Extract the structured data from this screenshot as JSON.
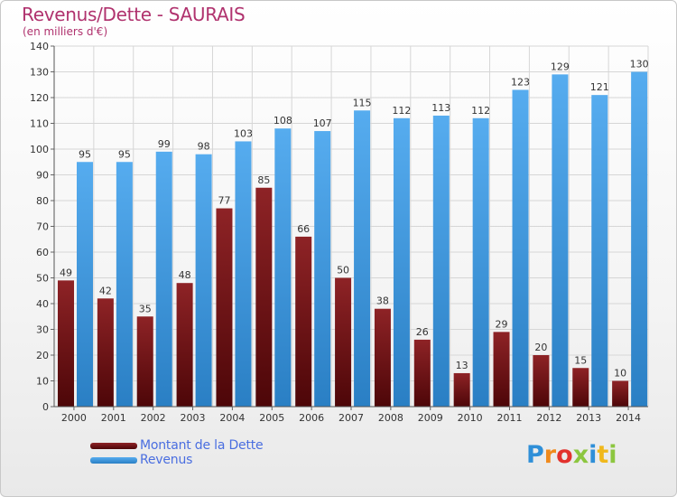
{
  "header": {
    "title": "Revenus/Dette - SAURAIS",
    "subtitle": "(en milliers d'€)"
  },
  "chart_data": {
    "type": "bar",
    "categories": [
      "2000",
      "2001",
      "2002",
      "2003",
      "2004",
      "2005",
      "2006",
      "2007",
      "2008",
      "2009",
      "2010",
      "2011",
      "2012",
      "2013",
      "2014"
    ],
    "series": [
      {
        "name": "Montant de la Dette",
        "color": "#6b0e12",
        "values": [
          49,
          42,
          35,
          48,
          77,
          85,
          66,
          50,
          38,
          26,
          13,
          29,
          20,
          15,
          10
        ]
      },
      {
        "name": "Revenus",
        "color": "#3d9ae2",
        "values": [
          95,
          95,
          99,
          98,
          103,
          108,
          107,
          115,
          112,
          113,
          112,
          123,
          129,
          121,
          130
        ]
      }
    ],
    "ylim": [
      0,
      140
    ],
    "ytick_step": 10,
    "grid": true,
    "legend_position": "bottom-left"
  },
  "legend": {
    "items": [
      {
        "label": "Montant de la Dette",
        "color": "#6b0e12"
      },
      {
        "label": "Revenus",
        "color": "#3d9ae2"
      }
    ]
  },
  "logo": {
    "letters": [
      {
        "ch": "P",
        "color": "#2f8fd8"
      },
      {
        "ch": "r",
        "color": "#f08a1c"
      },
      {
        "ch": "o",
        "color": "#e2312d"
      },
      {
        "ch": "x",
        "color": "#8cc63f"
      },
      {
        "ch": "i",
        "color": "#2f8fd8"
      },
      {
        "ch": "t",
        "color": "#f0b81c"
      },
      {
        "ch": "i",
        "color": "#8cc63f"
      }
    ]
  }
}
